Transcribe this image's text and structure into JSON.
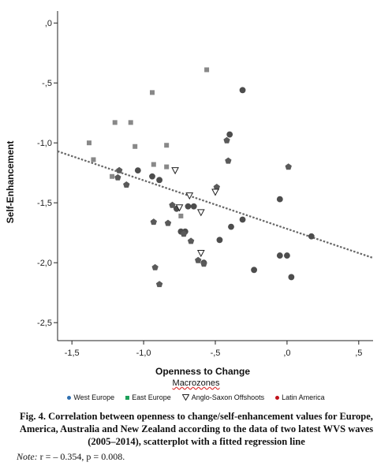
{
  "chart_data": {
    "type": "scatter",
    "xlabel": "Openness to Change",
    "ylabel": "Self-Enhancement",
    "xlim": [
      -1.6,
      0.6
    ],
    "ylim": [
      -2.65,
      0.1
    ],
    "xticks": [
      -1.5,
      -1.0,
      -0.5,
      0.0,
      0.5
    ],
    "xtick_labels": [
      "-1,5",
      "-1,0",
      "-,5",
      ",0",
      ",5"
    ],
    "yticks": [
      0.0,
      -0.5,
      -1.0,
      -1.5,
      -2.0,
      -2.5
    ],
    "ytick_labels": [
      ",0",
      "-,5",
      "-1,0",
      "-1,5",
      "-2,0",
      "-2,5"
    ],
    "regression": {
      "x1": -1.6,
      "y1": -1.07,
      "x2": 0.6,
      "y2": -1.96
    },
    "legend": {
      "title": "Macrozones",
      "placement": "bottom",
      "items": [
        {
          "label": "West Europe",
          "marker": "dot",
          "color": "#2f6fb0"
        },
        {
          "label": "East Europe",
          "marker": "square",
          "color": "#1ea05a"
        },
        {
          "label": "Anglo-Saxon Offshoots",
          "marker": "triangle",
          "color": "#222222"
        },
        {
          "label": "Latin America",
          "marker": "dot",
          "color": "#c0121b"
        }
      ]
    },
    "series": [
      {
        "marker": "circle",
        "points": [
          [
            -0.31,
            -0.56
          ],
          [
            -0.4,
            -0.93
          ],
          [
            -0.94,
            -1.28
          ],
          [
            -0.89,
            -1.31
          ],
          [
            -0.77,
            -1.55
          ],
          [
            -0.69,
            -1.53
          ],
          [
            -0.39,
            -1.7
          ],
          [
            -0.31,
            -1.64
          ],
          [
            -0.05,
            -1.47
          ],
          [
            0.17,
            -1.78
          ],
          [
            -0.71,
            -1.74
          ],
          [
            -0.47,
            -1.81
          ],
          [
            -0.05,
            -1.94
          ],
          [
            0.0,
            -1.94
          ],
          [
            -0.58,
            -2.0
          ],
          [
            -0.23,
            -2.06
          ],
          [
            0.03,
            -2.12
          ],
          [
            -1.04,
            -1.23
          ],
          [
            -0.65,
            -1.53
          ],
          [
            -0.74,
            -1.74
          ]
        ]
      },
      {
        "marker": "square",
        "points": [
          [
            -0.56,
            -0.39
          ],
          [
            -0.94,
            -0.58
          ],
          [
            -1.2,
            -0.83
          ],
          [
            -1.09,
            -0.83
          ],
          [
            -1.06,
            -1.03
          ],
          [
            -1.38,
            -1.0
          ],
          [
            -0.84,
            -1.02
          ],
          [
            -0.93,
            -1.18
          ],
          [
            -0.84,
            -1.2
          ],
          [
            -1.35,
            -1.14
          ],
          [
            -1.22,
            -1.28
          ],
          [
            -0.74,
            -1.61
          ]
        ]
      },
      {
        "marker": "pentagon",
        "points": [
          [
            -0.42,
            -0.98
          ],
          [
            -0.41,
            -1.15
          ],
          [
            0.01,
            -1.2
          ],
          [
            -1.17,
            -1.23
          ],
          [
            -1.18,
            -1.29
          ],
          [
            -1.12,
            -1.35
          ],
          [
            -0.49,
            -1.37
          ],
          [
            -0.8,
            -1.52
          ],
          [
            -0.93,
            -1.66
          ],
          [
            -0.83,
            -1.67
          ],
          [
            -0.72,
            -1.76
          ],
          [
            -0.67,
            -1.82
          ],
          [
            -0.62,
            -1.98
          ],
          [
            -0.58,
            -2.01
          ],
          [
            -0.92,
            -2.04
          ],
          [
            -0.89,
            -2.18
          ]
        ]
      },
      {
        "marker": "triangle",
        "points": [
          [
            -0.78,
            -1.23
          ],
          [
            -0.68,
            -1.44
          ],
          [
            -0.5,
            -1.41
          ],
          [
            -0.6,
            -1.92
          ],
          [
            -0.75,
            -1.54
          ],
          [
            -0.6,
            -1.58
          ]
        ]
      }
    ]
  },
  "legend_title": "Macrozones",
  "caption": "Fig. 4. Correlation between openness to change/self-enhancement values for Europe, America, Australia and New Zealand according to the data of two latest WVS waves (2005–2014), scatterplot with a fitted regression line",
  "note": {
    "label": "Note:",
    "text": "r = – 0.354, p = 0.008."
  },
  "colors": {
    "circle": "#4d4d4d",
    "square": "#888888",
    "pentagon": "#5a5a5a",
    "triangle_stroke": "#222222",
    "line": "#666666"
  }
}
